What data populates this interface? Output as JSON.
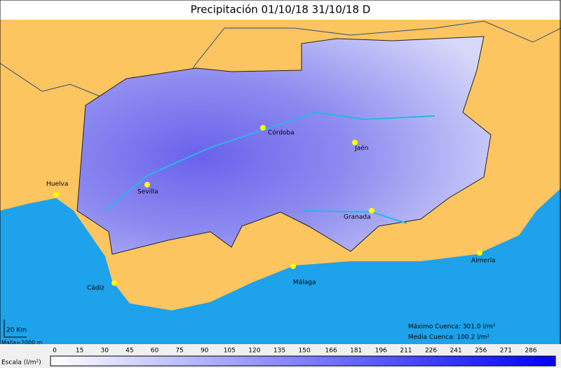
{
  "title": "Precipitación 01/10/18 31/10/18 D",
  "cities": [
    "Córdoba",
    "Jaén",
    "Huelva",
    "Sevilla",
    "Granada",
    "Cádiz",
    "Málaga",
    "Almería"
  ],
  "stats": {
    "max": "Máximo Cuenca: 301.0 l/m²",
    "mean": "Media Cuenca:  100.2 l/m²"
  },
  "scale_bar": {
    "distance": "20 Km",
    "grid": "Malla=2000 m"
  },
  "legend": {
    "label": "Escala (l/m²)",
    "ticks": [
      0,
      15,
      30,
      45,
      60,
      75,
      90,
      105,
      120,
      135,
      150,
      166,
      181,
      196,
      211,
      226,
      241,
      256,
      271,
      286
    ]
  }
}
